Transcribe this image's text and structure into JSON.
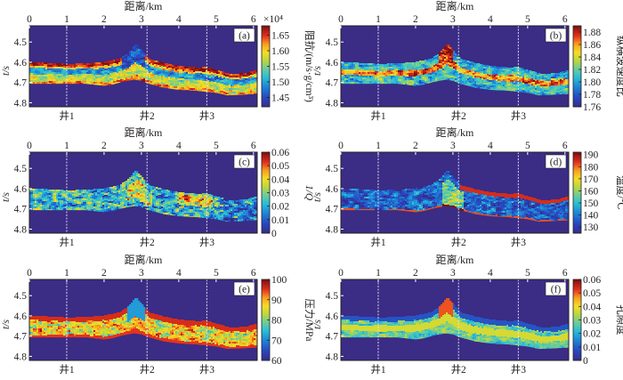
{
  "chart_data": [
    {
      "type": "heatmap",
      "panel_label": "(a)",
      "xlabel": "距离/km",
      "ylabel": "t/s",
      "x_ticks": [
        "0",
        "1",
        "2",
        "3",
        "4",
        "5",
        "6"
      ],
      "y_ticks": [
        "4.5",
        "4.6",
        "4.7",
        "4.8"
      ],
      "xlim": [
        0,
        6.1
      ],
      "ylim": [
        4.82,
        4.42
      ],
      "colorbar": {
        "label": "阻抗/(m/s·g/cm³)",
        "multiplier": "×10⁴",
        "ticks": [
          "1.45",
          "1.50",
          "1.55",
          "1.60",
          "1.65"
        ],
        "range": [
          1.42,
          1.68
        ]
      },
      "pattern": "impedance",
      "wells": [
        {
          "name": "井1",
          "x": 1.0
        },
        {
          "name": "井2",
          "x": 3.15
        },
        {
          "name": "井3",
          "x": 4.75
        }
      ]
    },
    {
      "type": "heatmap",
      "panel_label": "(b)",
      "xlabel": "距离/km",
      "ylabel": "t/s",
      "x_ticks": [
        "0",
        "1",
        "2",
        "3",
        "4",
        "5",
        "6"
      ],
      "y_ticks": [
        "4.5",
        "4.6",
        "4.7",
        "4.8"
      ],
      "xlim": [
        0,
        6.1
      ],
      "ylim": [
        4.82,
        4.42
      ],
      "colorbar": {
        "label": "纵横波速度比",
        "multiplier": "",
        "ticks": [
          "1.76",
          "1.78",
          "1.80",
          "1.82",
          "1.84",
          "1.86",
          "1.88"
        ],
        "range": [
          1.76,
          1.89
        ]
      },
      "pattern": "vpvs",
      "wells": [
        {
          "name": "井1",
          "x": 1.0
        },
        {
          "name": "井2",
          "x": 3.15
        },
        {
          "name": "井3",
          "x": 4.75
        }
      ]
    },
    {
      "type": "heatmap",
      "panel_label": "(c)",
      "xlabel": "距离/km",
      "ylabel": "t/s",
      "x_ticks": [
        "0",
        "1",
        "2",
        "3",
        "4",
        "5",
        "6"
      ],
      "y_ticks": [
        "4.5",
        "4.6",
        "4.7",
        "4.8"
      ],
      "xlim": [
        0,
        6.1
      ],
      "ylim": [
        4.82,
        4.42
      ],
      "colorbar": {
        "label": "1/Q",
        "multiplier": "",
        "ticks": [
          "0",
          "0.01",
          "0.02",
          "0.03",
          "0.04",
          "0.05",
          "0.06"
        ],
        "range": [
          0,
          0.06
        ]
      },
      "pattern": "q",
      "wells": [
        {
          "name": "井1",
          "x": 1.0
        },
        {
          "name": "井2",
          "x": 3.15
        },
        {
          "name": "井3",
          "x": 4.75
        }
      ]
    },
    {
      "type": "heatmap",
      "panel_label": "(d)",
      "xlabel": "距离/km",
      "ylabel": "t/s",
      "x_ticks": [
        "0",
        "1",
        "2",
        "3",
        "4",
        "5",
        "6"
      ],
      "y_ticks": [
        "4.5",
        "4.6",
        "4.7",
        "4.8"
      ],
      "xlim": [
        0,
        6.1
      ],
      "ylim": [
        4.82,
        4.42
      ],
      "colorbar": {
        "label": "温度/℃",
        "multiplier": "",
        "ticks": [
          "130",
          "140",
          "150",
          "160",
          "170",
          "180",
          "190"
        ],
        "range": [
          125,
          192
        ]
      },
      "pattern": "temperature",
      "wells": [
        {
          "name": "井1",
          "x": 1.0
        },
        {
          "name": "井2",
          "x": 3.15
        },
        {
          "name": "井3",
          "x": 4.75
        }
      ]
    },
    {
      "type": "heatmap",
      "panel_label": "(e)",
      "xlabel": "距离/km",
      "ylabel": "t/s",
      "x_ticks": [
        "0",
        "1",
        "2",
        "3",
        "4",
        "5",
        "6"
      ],
      "y_ticks": [
        "4.5",
        "4.6",
        "4.7",
        "4.8"
      ],
      "xlim": [
        0,
        6.1
      ],
      "ylim": [
        4.82,
        4.42
      ],
      "colorbar": {
        "label": "压力/MPa",
        "multiplier": "",
        "ticks": [
          "60",
          "70",
          "80",
          "90",
          "100"
        ],
        "range": [
          60,
          100
        ]
      },
      "pattern": "pressure",
      "wells": [
        {
          "name": "井1",
          "x": 1.0
        },
        {
          "name": "井2",
          "x": 3.15
        },
        {
          "name": "井3",
          "x": 4.75
        }
      ]
    },
    {
      "type": "heatmap",
      "panel_label": "(f)",
      "xlabel": "距离/km",
      "ylabel": "t/s",
      "x_ticks": [
        "0",
        "1",
        "2",
        "3",
        "4",
        "5",
        "6"
      ],
      "y_ticks": [
        "4.5",
        "4.6",
        "4.7",
        "4.8"
      ],
      "xlim": [
        0,
        6.1
      ],
      "ylim": [
        4.82,
        4.42
      ],
      "colorbar": {
        "label": "孔隙度",
        "multiplier": "",
        "ticks": [
          "0",
          "0.01",
          "0.02",
          "0.03",
          "0.04",
          "0.05",
          "0.06"
        ],
        "range": [
          0,
          0.06
        ]
      },
      "pattern": "porosity",
      "wells": [
        {
          "name": "井1",
          "x": 1.0
        },
        {
          "name": "井2",
          "x": 3.15
        },
        {
          "name": "井3",
          "x": 4.75
        }
      ]
    }
  ],
  "layer": {
    "top_boundary": [
      [
        0,
        4.6
      ],
      [
        0.5,
        4.605
      ],
      [
        1.0,
        4.61
      ],
      [
        1.5,
        4.608
      ],
      [
        2.0,
        4.6
      ],
      [
        2.4,
        4.585
      ],
      [
        2.65,
        4.555
      ],
      [
        2.85,
        4.51
      ],
      [
        3.0,
        4.54
      ],
      [
        3.2,
        4.585
      ],
      [
        3.6,
        4.605
      ],
      [
        4.0,
        4.62
      ],
      [
        4.5,
        4.628
      ],
      [
        4.75,
        4.625
      ],
      [
        5.0,
        4.64
      ],
      [
        5.4,
        4.66
      ],
      [
        5.8,
        4.655
      ],
      [
        6.1,
        4.64
      ]
    ],
    "bottom_boundary": [
      [
        0,
        4.705
      ],
      [
        0.5,
        4.705
      ],
      [
        1.0,
        4.705
      ],
      [
        1.5,
        4.705
      ],
      [
        2.0,
        4.715
      ],
      [
        2.2,
        4.71
      ],
      [
        2.5,
        4.695
      ],
      [
        2.8,
        4.685
      ],
      [
        3.0,
        4.69
      ],
      [
        3.2,
        4.705
      ],
      [
        3.6,
        4.725
      ],
      [
        4.0,
        4.735
      ],
      [
        4.5,
        4.74
      ],
      [
        5.0,
        4.75
      ],
      [
        5.3,
        4.762
      ],
      [
        5.6,
        4.76
      ],
      [
        6.1,
        4.755
      ]
    ]
  },
  "background_color": "#3b2c86"
}
